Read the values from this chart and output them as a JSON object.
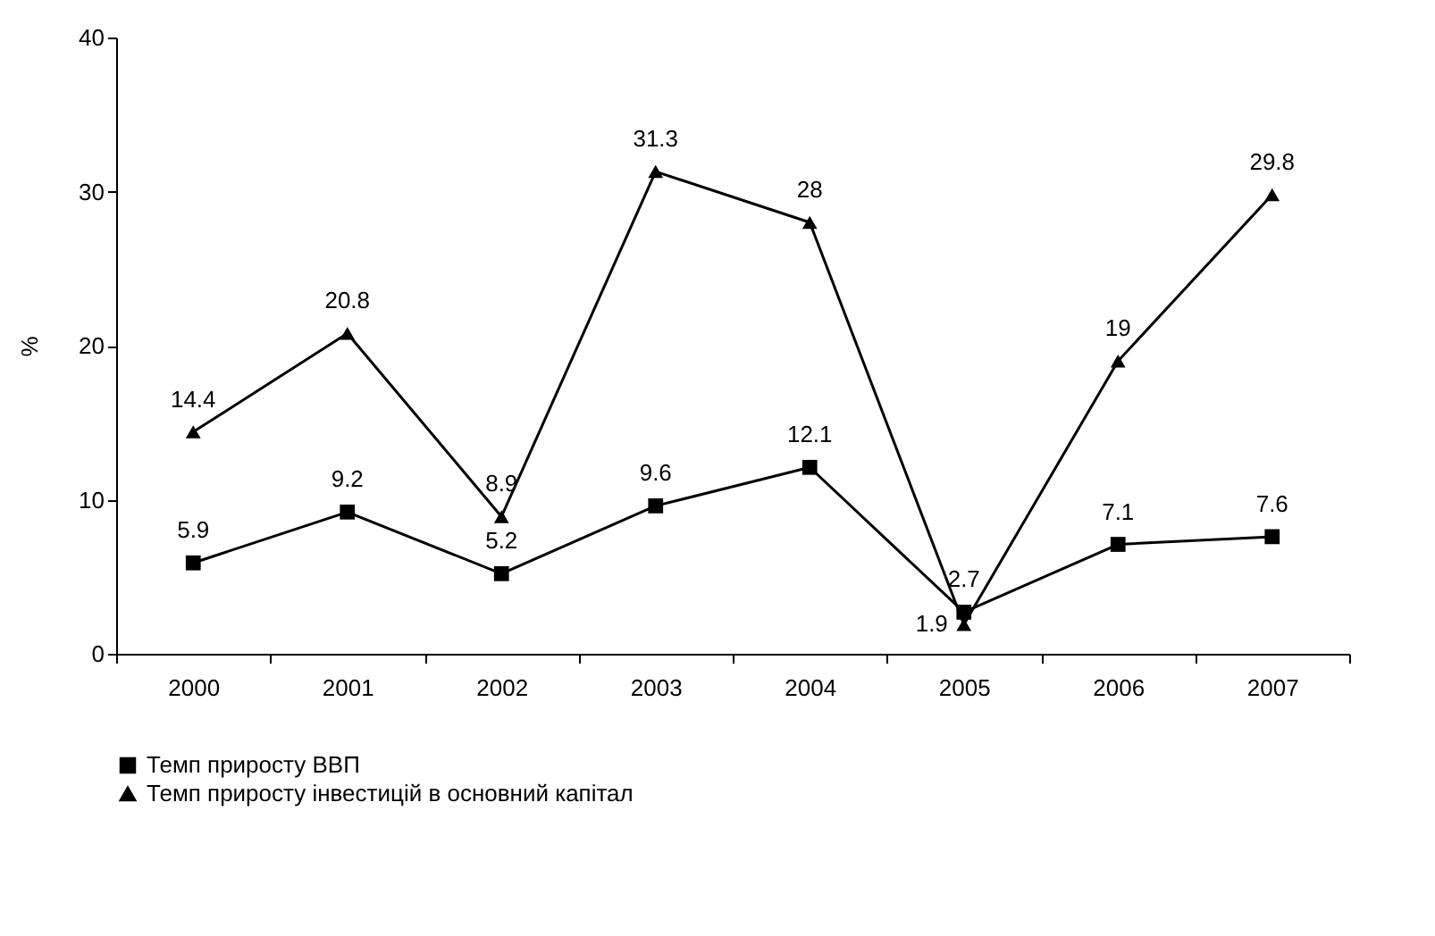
{
  "chart_data": {
    "type": "line",
    "ylabel": "%",
    "categories": [
      "2000",
      "2001",
      "2002",
      "2003",
      "2004",
      "2005",
      "2006",
      "2007"
    ],
    "series": [
      {
        "name": "Темп приросту ВВП",
        "color": "#000000",
        "marker": "square",
        "values": [
          5.9,
          9.2,
          5.2,
          9.6,
          12.1,
          2.7,
          7.1,
          7.6
        ]
      },
      {
        "name": "Темп приросту інвестицій в основний капітал",
        "color": "#000000",
        "marker": "triangle",
        "values": [
          14.4,
          20.8,
          8.9,
          31.3,
          28,
          1.9,
          19,
          29.8
        ]
      }
    ],
    "ylim": [
      0,
      40
    ],
    "yticks": [
      0,
      10,
      20,
      30,
      40
    ],
    "grid": false,
    "legend": "bottom",
    "data_labels": true,
    "line_style": "solid"
  }
}
